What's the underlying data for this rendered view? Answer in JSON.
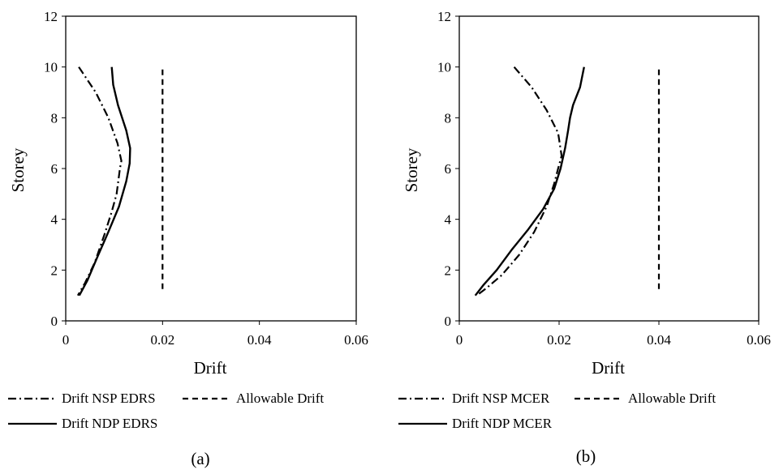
{
  "chart_data": [
    {
      "type": "line",
      "caption": "(a)",
      "xlabel": "Drift",
      "ylabel": "Storey",
      "xlim": [
        0,
        0.06
      ],
      "ylim": [
        0,
        12
      ],
      "xticks": [
        "0",
        "0.02",
        "0.04",
        "0.06"
      ],
      "yticks": [
        "0",
        "2",
        "4",
        "6",
        "8",
        "10",
        "12"
      ],
      "grid": false,
      "legend_position": "bottom",
      "series": [
        {
          "name": "Drift NSP EDRS",
          "style": "dashdot",
          "points": [
            [
              0.0027,
              10
            ],
            [
              0.0062,
              9
            ],
            [
              0.0088,
              8
            ],
            [
              0.0107,
              7
            ],
            [
              0.0115,
              6.3
            ],
            [
              0.0112,
              6
            ],
            [
              0.0105,
              5
            ],
            [
              0.0095,
              4.3
            ],
            [
              0.008,
              3.4
            ],
            [
              0.006,
              2.3
            ],
            [
              0.004,
              1.5
            ],
            [
              0.0025,
              1
            ]
          ]
        },
        {
          "name": "Allowable Drift",
          "style": "dashed",
          "points": [
            [
              0.02,
              1.25
            ],
            [
              0.02,
              10
            ]
          ]
        },
        {
          "name": "Drift NDP EDRS",
          "style": "solid",
          "points": [
            [
              0.0095,
              10
            ],
            [
              0.0098,
              9.3
            ],
            [
              0.0108,
              8.5
            ],
            [
              0.0125,
              7.5
            ],
            [
              0.0133,
              6.8
            ],
            [
              0.0132,
              6.2
            ],
            [
              0.0125,
              5.5
            ],
            [
              0.011,
              4.5
            ],
            [
              0.0088,
              3.5
            ],
            [
              0.0065,
              2.5
            ],
            [
              0.0045,
              1.6
            ],
            [
              0.0028,
              1
            ]
          ]
        }
      ]
    },
    {
      "type": "line",
      "caption": "(b)",
      "xlabel": "Drift",
      "ylabel": "Storey",
      "xlim": [
        0,
        0.06
      ],
      "ylim": [
        0,
        12
      ],
      "xticks": [
        "0",
        "0.02",
        "0.04",
        "0.06"
      ],
      "yticks": [
        "0",
        "2",
        "4",
        "6",
        "8",
        "10",
        "12"
      ],
      "grid": false,
      "legend_position": "bottom",
      "series": [
        {
          "name": "Drift NSP MCER",
          "style": "dashdot",
          "points": [
            [
              0.011,
              10
            ],
            [
              0.0145,
              9.2
            ],
            [
              0.0175,
              8.3
            ],
            [
              0.0198,
              7.4
            ],
            [
              0.0205,
              6.5
            ],
            [
              0.0198,
              6
            ],
            [
              0.019,
              5.4
            ],
            [
              0.0175,
              4.5
            ],
            [
              0.015,
              3.5
            ],
            [
              0.012,
              2.6
            ],
            [
              0.0085,
              1.8
            ],
            [
              0.0055,
              1.3
            ],
            [
              0.0035,
              1
            ]
          ]
        },
        {
          "name": "Allowable Drift",
          "style": "dashed",
          "points": [
            [
              0.04,
              1.25
            ],
            [
              0.04,
              10
            ]
          ]
        },
        {
          "name": "Drift NDP MCER",
          "style": "solid",
          "points": [
            [
              0.025,
              10
            ],
            [
              0.0242,
              9.2
            ],
            [
              0.0228,
              8.5
            ],
            [
              0.0222,
              8
            ],
            [
              0.0218,
              7.5
            ],
            [
              0.0212,
              6.8
            ],
            [
              0.0203,
              6
            ],
            [
              0.019,
              5.2
            ],
            [
              0.0168,
              4.4
            ],
            [
              0.0138,
              3.6
            ],
            [
              0.0105,
              2.8
            ],
            [
              0.0075,
              2
            ],
            [
              0.0048,
              1.4
            ],
            [
              0.0032,
              1
            ]
          ]
        }
      ]
    }
  ]
}
